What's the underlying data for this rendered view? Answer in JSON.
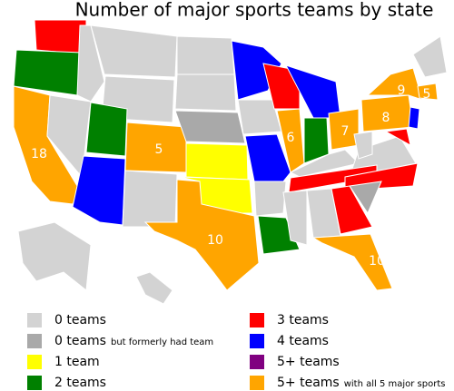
{
  "title": "Number of major sports teams by state",
  "legend": [
    {
      "label": "0 teams",
      "color": "#d3d3d3"
    },
    {
      "label": "0 teams",
      "note": "but formerly had team",
      "color": "#a9a9a9"
    },
    {
      "label": "1 team",
      "color": "#ffff00"
    },
    {
      "label": "2 teams",
      "color": "#008000"
    },
    {
      "label": "3 teams",
      "color": "#ff0000"
    },
    {
      "label": "4 teams",
      "color": "#0000ff"
    },
    {
      "label": "5+ teams",
      "color": "#800080"
    },
    {
      "label": "5+ teams",
      "note": "with all 5 major sports",
      "color": "#ffa500"
    }
  ],
  "map_labels": [
    18,
    5,
    10,
    6,
    7,
    9,
    8,
    5,
    10
  ]
}
